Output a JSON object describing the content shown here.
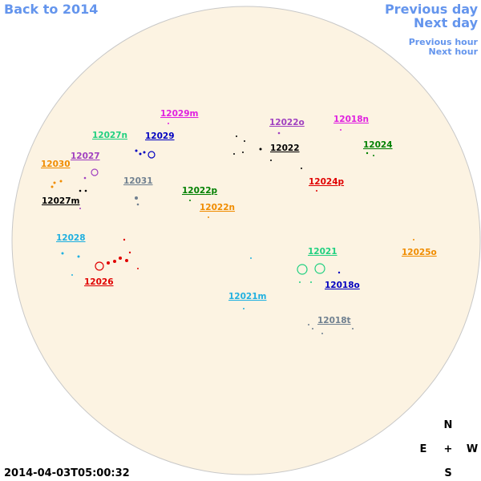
{
  "nav": {
    "back": "Back to 2014",
    "previous_day": "Previous day",
    "next_day": "Next day",
    "previous_hour": "Previous hour",
    "next_hour": "Next hour"
  },
  "regions": [
    "12029m",
    "12027n",
    "12029",
    "12022o",
    "12018n",
    "12022",
    "12024",
    "12027",
    "12030",
    "12031",
    "12024p",
    "12022p",
    "12027m",
    "12022n",
    "12028",
    "12021",
    "12025o",
    "12026",
    "12018o",
    "12021m",
    "12018t"
  ],
  "compass": {
    "north": "N",
    "east": "E",
    "center": "+",
    "west": "W",
    "south": "S"
  },
  "timestamp": "2014-04-03T05:00:32"
}
